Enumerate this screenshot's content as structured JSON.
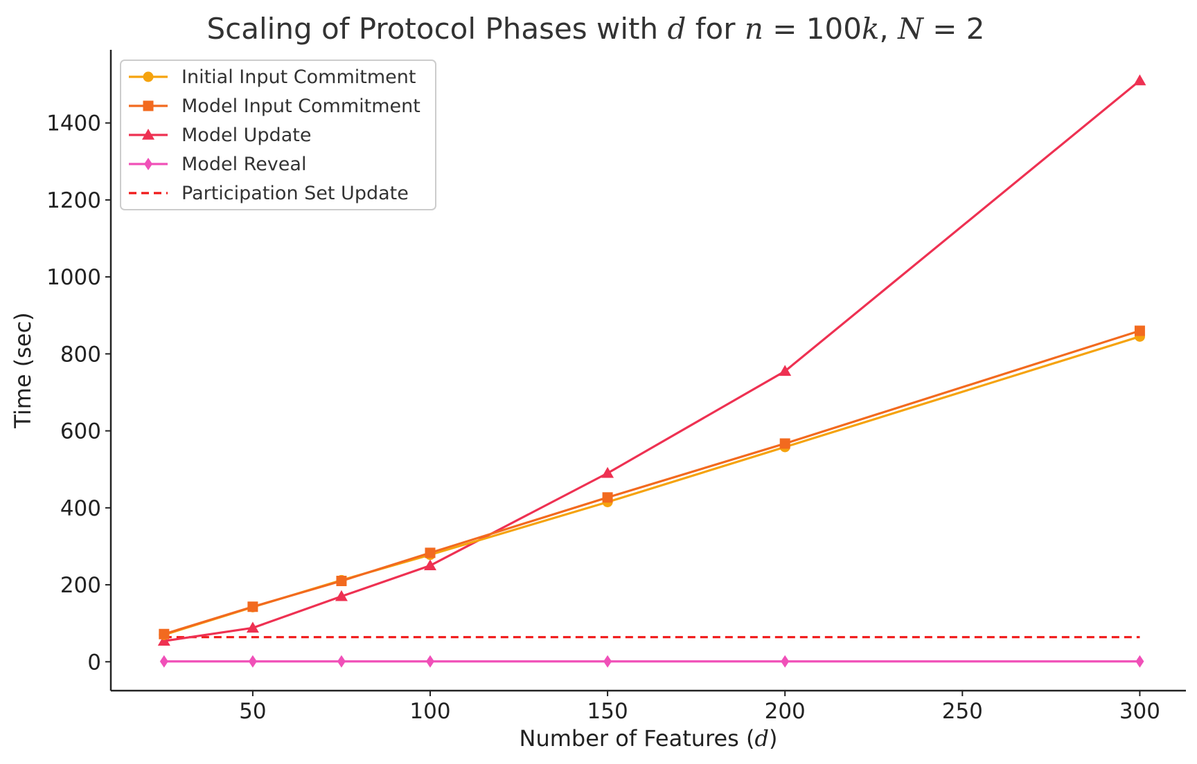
{
  "chart_data": {
    "type": "line",
    "title": {
      "before": "Scaling of Protocol Phases with ",
      "d_symbol": "d",
      "middle": " for ",
      "n_symbol": "n",
      "n_eq": " = 100",
      "k_symbol": "k",
      "comma": ", ",
      "N_symbol": "N",
      "N_eq": " = 2"
    },
    "xlabel": {
      "text": "Number of Features (",
      "symbol": "d",
      "close": ")"
    },
    "ylabel": "Time (sec)",
    "x": [
      25,
      50,
      75,
      100,
      150,
      200,
      300
    ],
    "xlim": [
      10,
      313
    ],
    "ylim": [
      -75,
      1590
    ],
    "xticks": [
      50,
      100,
      150,
      200,
      250,
      300
    ],
    "yticks": [
      0,
      200,
      400,
      600,
      800,
      1000,
      1200,
      1400
    ],
    "grid": false,
    "legend_position": "top-left",
    "series": [
      {
        "name": "Initial Input Commitment",
        "color": "#F5A30E",
        "marker": "circle",
        "dash": false,
        "values": [
          70,
          142,
          212,
          278,
          415,
          558,
          845
        ]
      },
      {
        "name": "Model Input Commitment",
        "color": "#F26A1F",
        "marker": "square",
        "dash": false,
        "values": [
          72,
          143,
          210,
          283,
          427,
          567,
          860
        ]
      },
      {
        "name": "Model Update",
        "color": "#EE3152",
        "marker": "triangle",
        "dash": false,
        "values": [
          54,
          88,
          170,
          250,
          490,
          755,
          1510
        ]
      },
      {
        "name": "Model Reveal",
        "color": "#F050B8",
        "marker": "diamond",
        "dash": false,
        "values": [
          1,
          1,
          1,
          1,
          1,
          1,
          1
        ]
      },
      {
        "name": "Participation Set Update",
        "color": "#F01818",
        "marker": "none",
        "dash": true,
        "values": [
          64,
          64,
          64,
          64,
          64,
          64,
          64
        ]
      }
    ]
  }
}
